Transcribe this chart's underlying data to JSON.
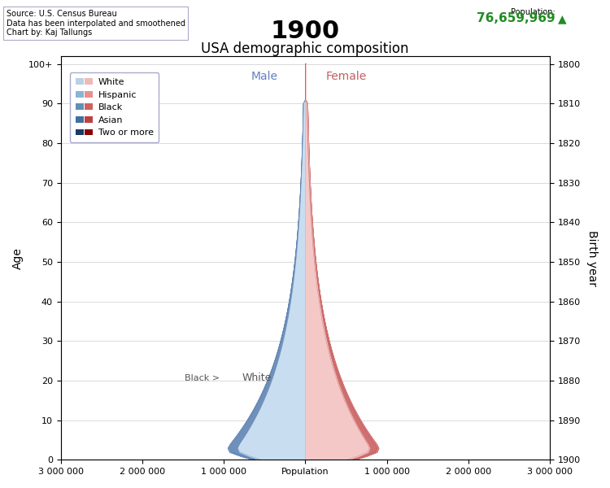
{
  "year": 1900,
  "subtitle": "USA demographic composition",
  "population": "76,659,969",
  "source_text": "Source: U.S. Census Bureau\nData has been interpolated and smoothened\nChart by: Kaj Tallungs",
  "male_label": "Male",
  "female_label": "Female",
  "age_label": "Age",
  "birth_year_label": "Birth year",
  "population_label": "Population",
  "black_label": "Black >",
  "white_label": "White",
  "legend_entries": [
    {
      "label": "White",
      "male_color": "#b8d0e8",
      "female_color": "#f0b8b8"
    },
    {
      "label": "Hispanic",
      "male_color": "#8ab4d4",
      "female_color": "#e89090"
    },
    {
      "label": "Black",
      "male_color": "#6090b8",
      "female_color": "#d06060"
    },
    {
      "label": "Asian",
      "male_color": "#4070a0",
      "female_color": "#c04040"
    },
    {
      "label": "Two or more",
      "male_color": "#1a3a6a",
      "female_color": "#8b0000"
    }
  ],
  "xlim_max": 3000000,
  "age_ticks": [
    0,
    10,
    20,
    30,
    40,
    50,
    60,
    70,
    80,
    90,
    100
  ],
  "birth_year_ticks": [
    1800,
    1810,
    1820,
    1830,
    1840,
    1850,
    1860,
    1870,
    1880,
    1890,
    1900
  ],
  "title_fontsize": 22,
  "subtitle_fontsize": 12,
  "population_color": "#228b22",
  "background_color": "#ffffff"
}
